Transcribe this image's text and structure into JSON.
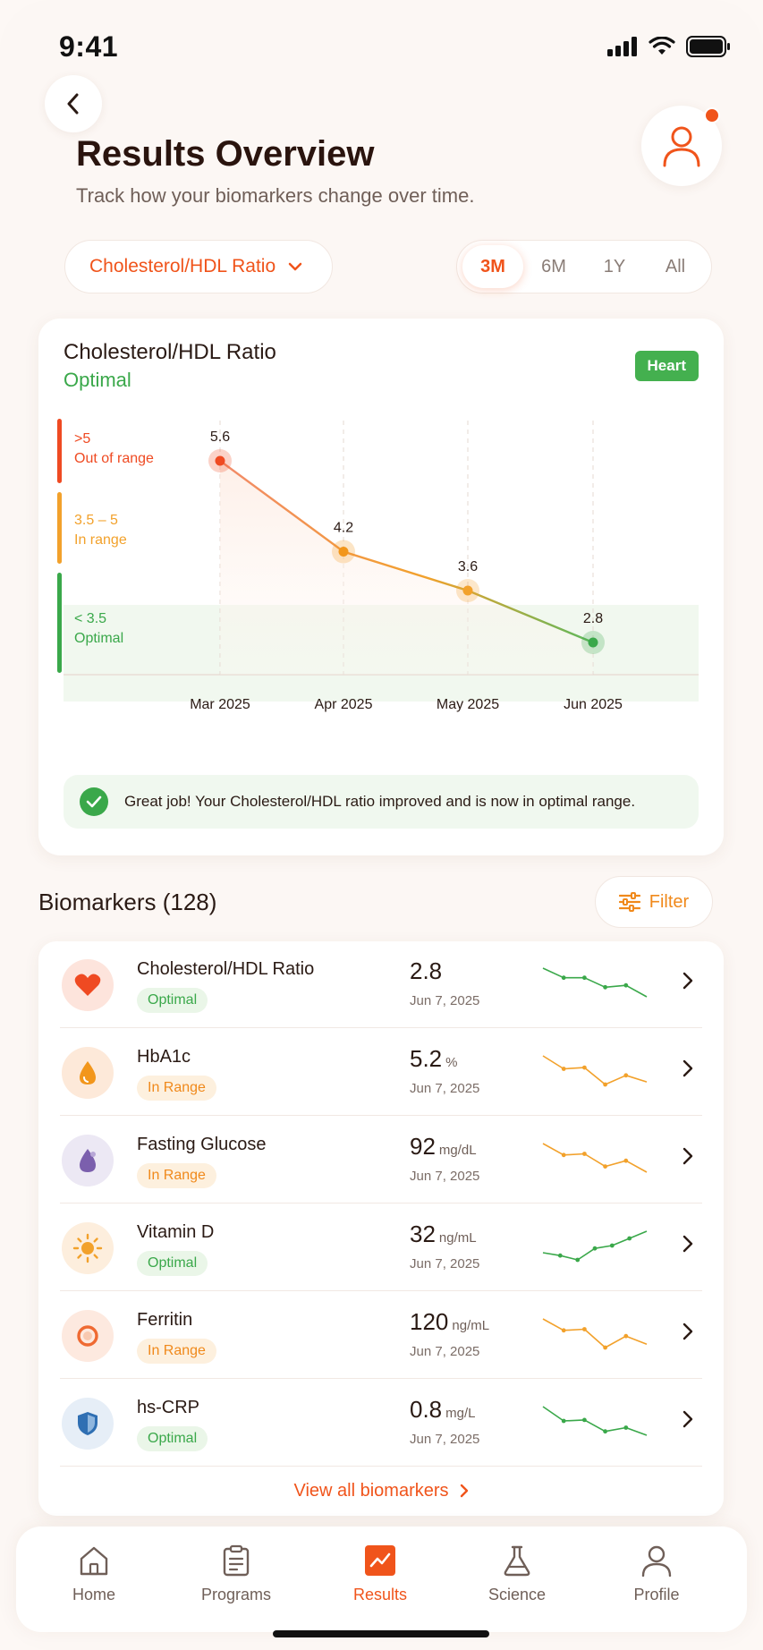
{
  "status": {
    "time": "9:41"
  },
  "header": {
    "title": "Results Overview",
    "subtitle": "Track how your biomarkers change over time."
  },
  "selector": {
    "label": "Cholesterol/HDL Ratio"
  },
  "ranges": [
    "3M",
    "6M",
    "1Y",
    "All"
  ],
  "active_range": "3M",
  "card": {
    "title": "Cholesterol/HDL Ratio",
    "status": "Optimal",
    "tag": "Heart",
    "bands": [
      {
        "range": ">5",
        "label": "Out of range",
        "color": "#ef4a22"
      },
      {
        "range": "3.5 – 5",
        "label": "In range",
        "color": "#f2a12b"
      },
      {
        "range": "< 3.5",
        "label": "Optimal",
        "color": "#3aa84a"
      }
    ],
    "message": "Great job! Your Cholesterol/HDL ratio improved and is now in optimal range."
  },
  "chart_data": {
    "type": "line",
    "title": "Cholesterol/HDL Ratio",
    "categories": [
      "Mar 2025",
      "Apr 2025",
      "May 2025",
      "Jun 2025"
    ],
    "values": [
      5.6,
      4.2,
      3.6,
      2.8
    ],
    "data_labels": [
      "5.6",
      "4.2",
      "3.6",
      "2.8"
    ],
    "point_colors": [
      "#ef4a22",
      "#f2961b",
      "#f2a12b",
      "#3aa84a"
    ],
    "ylim": [
      2,
      6
    ],
    "grid": "vertical-dashed"
  },
  "biomarkers": {
    "header": "Biomarkers (128)",
    "filter_label": "Filter",
    "view_all": "View all biomarkers",
    "items": [
      {
        "name": "Cholesterol/HDL Ratio",
        "status": "Optimal",
        "value": "2.8",
        "unit": "",
        "date": "Jun 7, 2025",
        "icon": "heart-icon",
        "spark": [
          6,
          5,
          5,
          4,
          4.2,
          3
        ],
        "spark_color": "#3aa84a"
      },
      {
        "name": "HbA1c",
        "status": "In Range",
        "value": "5.2",
        "unit": "%",
        "date": "Jun 7, 2025",
        "icon": "drop-icon",
        "spark": [
          6,
          5,
          5.1,
          3.8,
          4.5,
          4
        ],
        "spark_color": "#f2a12b"
      },
      {
        "name": "Fasting Glucose",
        "status": "In Range",
        "value": "92",
        "unit": "mg/dL",
        "date": "Jun 7, 2025",
        "icon": "blood-drop-icon",
        "spark": [
          6,
          5,
          5.1,
          4,
          4.5,
          3.5
        ],
        "spark_color": "#f2a12b"
      },
      {
        "name": "Vitamin D",
        "status": "Optimal",
        "value": "32",
        "unit": "ng/mL",
        "date": "Jun 7, 2025",
        "icon": "sun-icon",
        "spark": [
          3,
          2.6,
          2,
          3.6,
          4,
          5,
          6
        ],
        "spark_color": "#3aa84a"
      },
      {
        "name": "Ferritin",
        "status": "In Range",
        "value": "120",
        "unit": "ng/mL",
        "date": "Jun 7, 2025",
        "icon": "ring-icon",
        "spark": [
          6,
          5,
          5.1,
          3.5,
          4.5,
          3.8
        ],
        "spark_color": "#f2a12b"
      },
      {
        "name": "hs-CRP",
        "status": "Optimal",
        "value": "0.8",
        "unit": "mg/L",
        "date": "Jun 7, 2025",
        "icon": "shield-icon",
        "spark": [
          6,
          4.5,
          4.6,
          3.4,
          3.8,
          3
        ],
        "spark_color": "#3aa84a"
      }
    ]
  },
  "tabs": [
    {
      "label": "Home",
      "icon": "home-icon"
    },
    {
      "label": "Programs",
      "icon": "clipboard-icon"
    },
    {
      "label": "Results",
      "icon": "chart-icon"
    },
    {
      "label": "Science",
      "icon": "flask-icon"
    },
    {
      "label": "Profile",
      "icon": "person-icon"
    }
  ],
  "active_tab": "Results"
}
